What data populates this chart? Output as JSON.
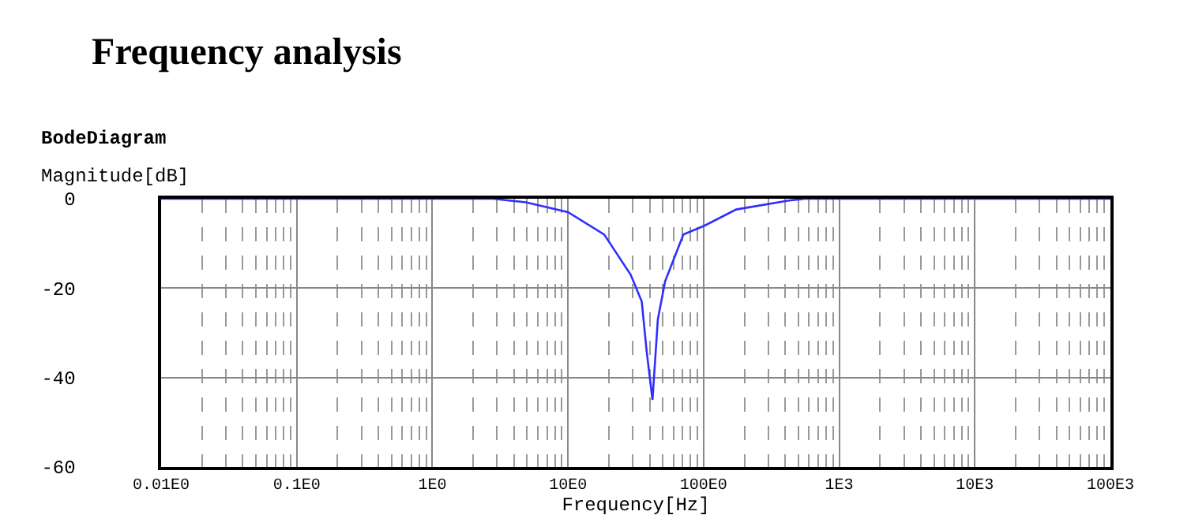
{
  "chart_data": {
    "type": "line",
    "title": "Frequency analysis",
    "subtitle": "BodeDiagram",
    "xlabel": "Frequency[Hz]",
    "ylabel": "Magnitude[dB]",
    "log": "x",
    "grid": true,
    "marker": "none",
    "line_style": "solid",
    "xlim": [
      0.01,
      100000
    ],
    "xticks": [
      {
        "value": 0.01,
        "label": "0.01E0"
      },
      {
        "value": 0.1,
        "label": "0.1E0"
      },
      {
        "value": 1,
        "label": "1E0"
      },
      {
        "value": 10,
        "label": "10E0"
      },
      {
        "value": 100,
        "label": "100E0"
      },
      {
        "value": 1000,
        "label": "1E3"
      },
      {
        "value": 10000,
        "label": "10E3"
      },
      {
        "value": 100000,
        "label": "100E3"
      }
    ],
    "ylim": [
      -60,
      0
    ],
    "yticks": [
      0,
      -20,
      -40,
      -60
    ],
    "series": [
      {
        "color": "#2f2fff",
        "x": [
          0.01,
          0.1,
          1,
          2.8,
          4.9,
          10,
          18.5,
          29,
          35,
          38,
          42,
          46,
          52,
          71,
          102,
          174,
          425,
          555,
          1000,
          10000,
          100000
        ],
        "values": [
          0,
          0,
          0,
          0,
          -0.8,
          -3,
          -8,
          -17,
          -23,
          -34,
          -45,
          -27,
          -18.5,
          -8,
          -6,
          -2.4,
          -0.4,
          0,
          0,
          0,
          0
        ]
      }
    ]
  }
}
